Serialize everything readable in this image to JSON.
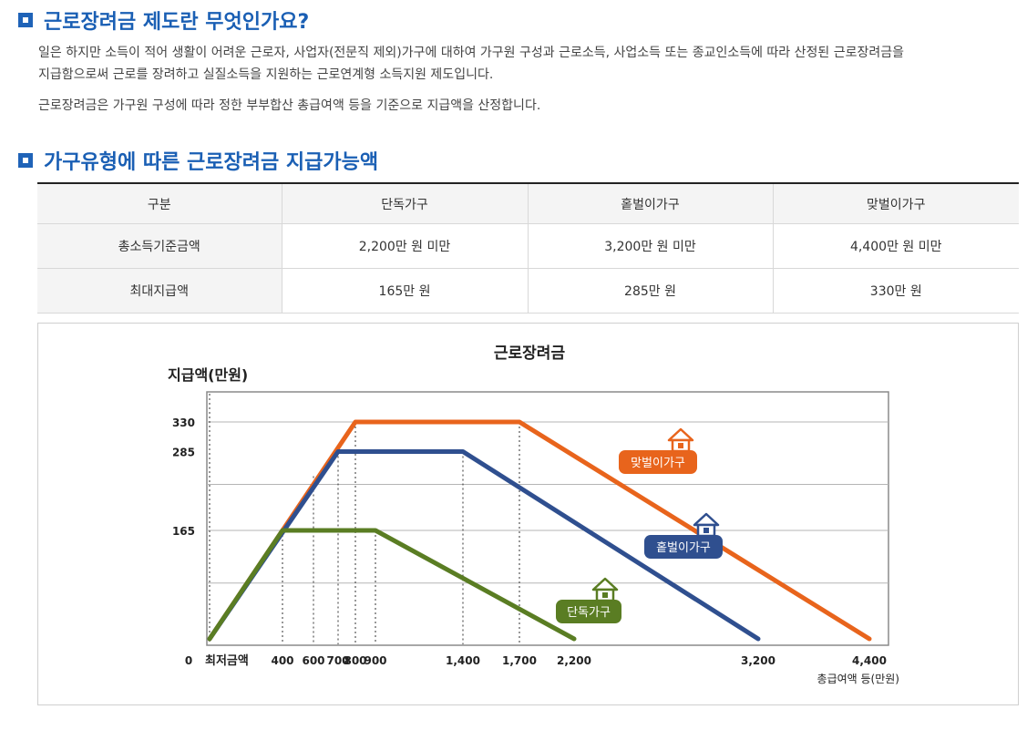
{
  "section1": {
    "title": "근로장려금 제도란 무엇인가요?",
    "paragraph1_line1": "일은 하지만 소득이 적어 생활이 어려운 근로자, 사업자(전문직 제외)가구에 대하여 가구원 구성과 근로소득, 사업소득 또는 종교인소득에 따라 산정된 근로장려금을",
    "paragraph1_line2": "지급함으로써 근로를 장려하고 실질소득을 지원하는 근로연계형 소득지원 제도입니다.",
    "paragraph2": "근로장려금은 가구원 구성에 따라 정한 부부합산 총급여액 등을 기준으로 지급액을 산정합니다."
  },
  "section2": {
    "title": "가구유형에 따른 근로장려금 지급가능액"
  },
  "table": {
    "headers": [
      "구분",
      "단독가구",
      "홑벌이가구",
      "맞벌이가구"
    ],
    "rows": [
      [
        "총소득기준금액",
        "2,200만 원 미만",
        "3,200만 원 미만",
        "4,400만 원 미만"
      ],
      [
        "최대지급액",
        "165만 원",
        "285만 원",
        "330만 원"
      ]
    ]
  },
  "chart_data": {
    "type": "line",
    "title": "근로장려금",
    "ylabel": "지급액(만원)",
    "xlabel": "총급여액 등(만원)",
    "x_origin_label": "0",
    "x_min_label": "최저금액",
    "xlim": [
      0,
      4400
    ],
    "ylim": [
      0,
      400
    ],
    "x_ticks": [
      {
        "value": 400,
        "label": "400"
      },
      {
        "value": 600,
        "label": "600"
      },
      {
        "value": 700,
        "label": "700"
      },
      {
        "value": 800,
        "label": "800"
      },
      {
        "value": 900,
        "label": "900"
      },
      {
        "value": 1400,
        "label": "1,400"
      },
      {
        "value": 1700,
        "label": "1,700"
      },
      {
        "value": 2200,
        "label": "2,200"
      },
      {
        "value": 3200,
        "label": "3,200"
      },
      {
        "value": 4400,
        "label": "4,400"
      }
    ],
    "y_ticks": [
      {
        "value": 165,
        "label": "165"
      },
      {
        "value": 285,
        "label": "285"
      },
      {
        "value": 330,
        "label": "330"
      }
    ],
    "grid": true,
    "series": [
      {
        "name": "맞벌이가구",
        "color": "#e8641c",
        "x": [
          0,
          800,
          1700,
          4400
        ],
        "y": [
          0,
          330,
          330,
          0
        ]
      },
      {
        "name": "홑벌이가구",
        "color": "#2f4f8f",
        "x": [
          0,
          700,
          1400,
          3200
        ],
        "y": [
          0,
          285,
          285,
          0
        ]
      },
      {
        "name": "단독가구",
        "color": "#5a7d23",
        "x": [
          0,
          400,
          900,
          2200
        ],
        "y": [
          0,
          165,
          165,
          0
        ]
      }
    ]
  }
}
